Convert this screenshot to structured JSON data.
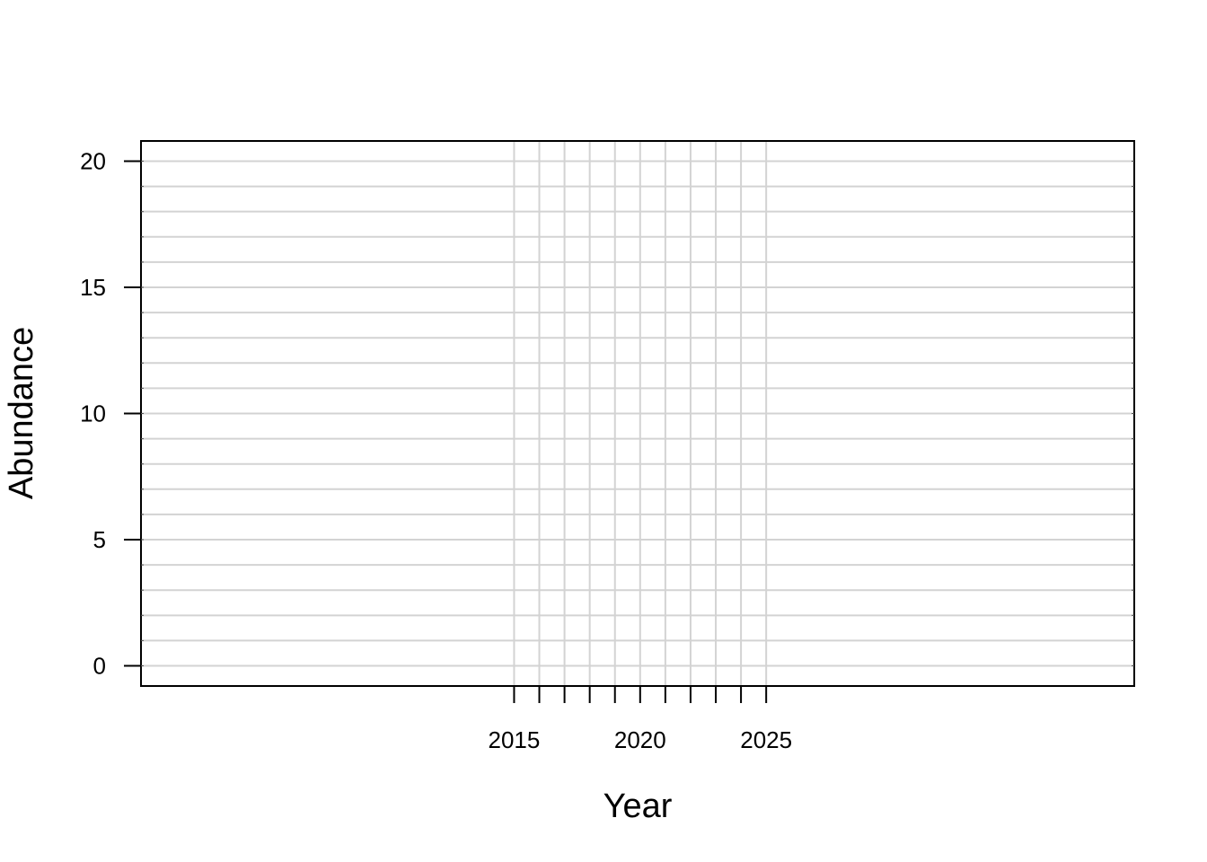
{
  "chart_data": {
    "type": "line",
    "title": "",
    "xlabel": "Year",
    "ylabel": "Abundance",
    "xlim": [
      2000.2,
      2039.6
    ],
    "ylim": [
      -0.8,
      20.8
    ],
    "x_ticks": [
      2015,
      2016,
      2017,
      2018,
      2019,
      2020,
      2021,
      2022,
      2023,
      2024,
      2025
    ],
    "x_tick_labels": [
      "2015",
      "",
      "",
      "",
      "",
      "2020",
      "",
      "",
      "",
      "",
      "2025"
    ],
    "y_ticks": [
      0,
      5,
      10,
      15,
      20
    ],
    "y_tick_labels": [
      "0",
      "5",
      "10",
      "15",
      "20"
    ],
    "y_minor_ticks": [
      0,
      1,
      2,
      3,
      4,
      5,
      6,
      7,
      8,
      9,
      10,
      11,
      12,
      13,
      14,
      15,
      16,
      17,
      18,
      19,
      20
    ],
    "grid": true,
    "grid_color": "#d3d3d3",
    "series": []
  }
}
